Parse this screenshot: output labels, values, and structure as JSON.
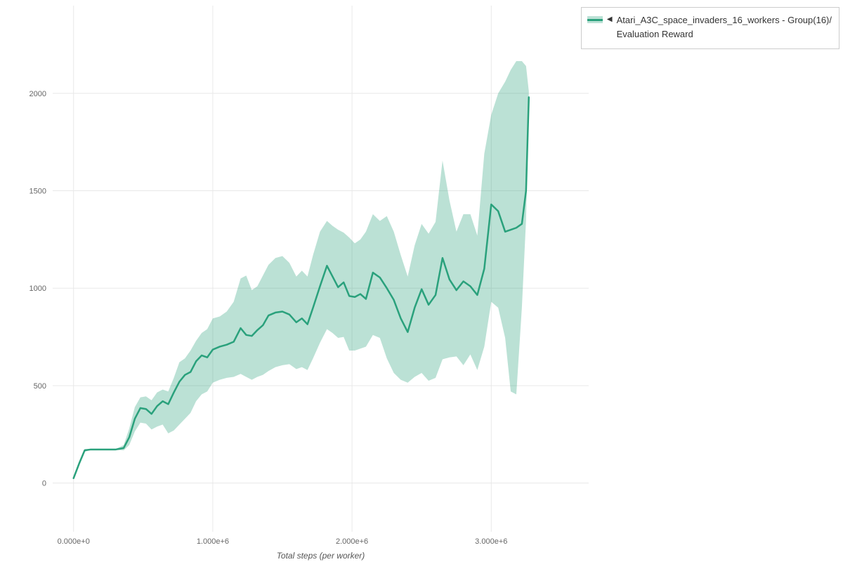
{
  "page": {
    "background": "#ffffff"
  },
  "legend": {
    "marker": "◀",
    "series_name": "Atari_A3C_space_invaders_16_workers - Group(16)/",
    "metric_name": "Evaluation Reward"
  },
  "chart_data": {
    "type": "line",
    "title": "",
    "xlabel": "Total steps (per worker)",
    "ylabel": "",
    "legend_position": "top-right-outside",
    "grid": true,
    "grid_color": "#e8e8e8",
    "tick_color": "#666666",
    "axis_title_color": "#555555",
    "line_color": "#2aa17c",
    "band_opacity": 0.32,
    "xlim": [
      -150000,
      3700000
    ],
    "ylim": [
      -250,
      2450
    ],
    "x_ticks": [
      {
        "value": 0,
        "label": "0.000e+0"
      },
      {
        "value": 1000000,
        "label": "1.000e+6"
      },
      {
        "value": 2000000,
        "label": "2.000e+6"
      },
      {
        "value": 3000000,
        "label": "3.000e+6"
      }
    ],
    "y_ticks": [
      {
        "value": 0,
        "label": "0"
      },
      {
        "value": 500,
        "label": "500"
      },
      {
        "value": 1000,
        "label": "1000"
      },
      {
        "value": 1500,
        "label": "1500"
      },
      {
        "value": 2000,
        "label": "2000"
      }
    ],
    "series": [
      {
        "name": "Atari_A3C_space_invaders_16_workers - Group(16)/ Evaluation Reward",
        "x": [
          0,
          40000,
          80000,
          120000,
          180000,
          240000,
          300000,
          360000,
          400000,
          440000,
          480000,
          520000,
          560000,
          600000,
          640000,
          680000,
          720000,
          760000,
          800000,
          840000,
          880000,
          920000,
          960000,
          1000000,
          1050000,
          1100000,
          1150000,
          1200000,
          1240000,
          1280000,
          1320000,
          1360000,
          1400000,
          1450000,
          1500000,
          1550000,
          1600000,
          1640000,
          1680000,
          1720000,
          1770000,
          1820000,
          1860000,
          1900000,
          1940000,
          1980000,
          2020000,
          2060000,
          2100000,
          2150000,
          2200000,
          2250000,
          2300000,
          2350000,
          2400000,
          2450000,
          2500000,
          2550000,
          2600000,
          2650000,
          2700000,
          2750000,
          2800000,
          2850000,
          2900000,
          2950000,
          3000000,
          3050000,
          3100000,
          3140000,
          3180000,
          3220000,
          3250000,
          3270000
        ],
        "mean": [
          25,
          100,
          168,
          172,
          172,
          172,
          172,
          180,
          235,
          330,
          385,
          380,
          355,
          395,
          420,
          405,
          465,
          520,
          555,
          570,
          625,
          655,
          645,
          685,
          700,
          710,
          725,
          795,
          760,
          755,
          785,
          810,
          860,
          875,
          880,
          865,
          825,
          845,
          815,
          900,
          1010,
          1115,
          1060,
          1005,
          1030,
          960,
          955,
          970,
          945,
          1080,
          1055,
          1000,
          940,
          845,
          775,
          900,
          995,
          915,
          965,
          1155,
          1045,
          990,
          1035,
          1010,
          965,
          1100,
          1430,
          1395,
          1290,
          1300,
          1310,
          1330,
          1500,
          1980
        ],
        "lower": [
          20,
          90,
          160,
          170,
          170,
          170,
          170,
          168,
          195,
          265,
          310,
          305,
          275,
          290,
          300,
          255,
          270,
          300,
          330,
          360,
          420,
          455,
          470,
          515,
          530,
          540,
          545,
          560,
          545,
          530,
          545,
          555,
          575,
          595,
          605,
          610,
          585,
          595,
          580,
          640,
          720,
          790,
          770,
          745,
          750,
          680,
          680,
          690,
          700,
          760,
          745,
          640,
          565,
          530,
          515,
          545,
          565,
          525,
          540,
          635,
          645,
          650,
          605,
          660,
          580,
          700,
          930,
          900,
          745,
          470,
          455,
          900,
          1350,
          1950
        ],
        "upper": [
          30,
          110,
          175,
          174,
          174,
          174,
          174,
          195,
          280,
          390,
          440,
          445,
          425,
          465,
          480,
          470,
          540,
          620,
          640,
          680,
          730,
          770,
          790,
          845,
          855,
          880,
          930,
          1050,
          1065,
          990,
          1010,
          1065,
          1120,
          1155,
          1165,
          1130,
          1060,
          1090,
          1060,
          1170,
          1290,
          1345,
          1320,
          1300,
          1285,
          1260,
          1230,
          1250,
          1290,
          1380,
          1345,
          1370,
          1290,
          1170,
          1060,
          1220,
          1330,
          1280,
          1340,
          1655,
          1450,
          1290,
          1380,
          1380,
          1270,
          1690,
          1890,
          2000,
          2060,
          2120,
          2165,
          2165,
          2140,
          2010
        ]
      }
    ]
  }
}
